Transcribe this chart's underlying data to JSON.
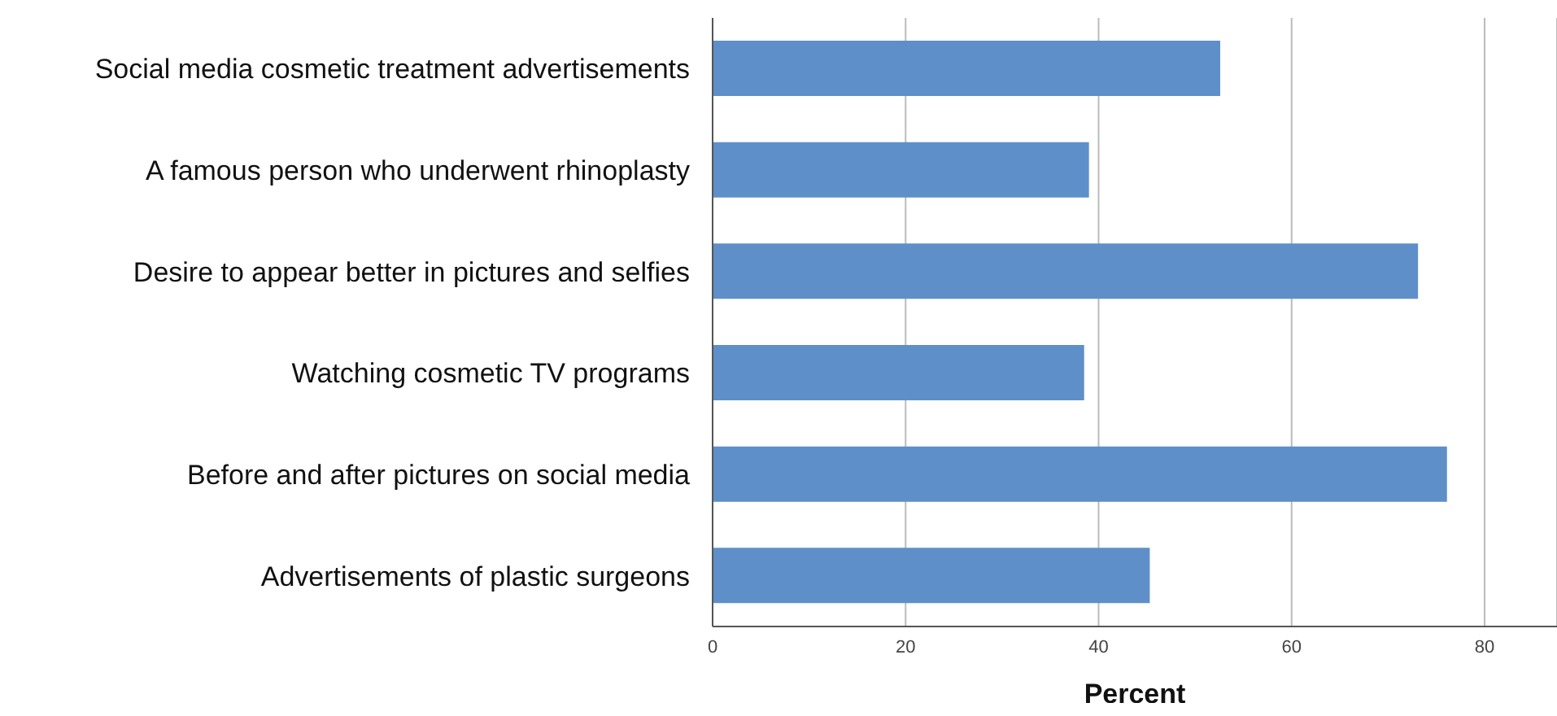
{
  "chart_data": {
    "type": "bar",
    "orientation": "horizontal",
    "xlabel": "Percent",
    "categories": [
      "Social media cosmetic treatment advertisements",
      "A famous person who underwent rhinoplasty",
      "Desire to appear better in pictures and selfies",
      "Watching cosmetic TV programs",
      "Before and after pictures on social media",
      "Advertisements of plastic surgeons"
    ],
    "values": [
      52.6,
      39.0,
      73.1,
      38.5,
      76.1,
      45.3
    ],
    "color": "#5e8fc9",
    "xlim": [
      0,
      87.5
    ],
    "xticks": [
      0,
      20,
      40,
      60,
      80
    ],
    "grid": "x"
  }
}
